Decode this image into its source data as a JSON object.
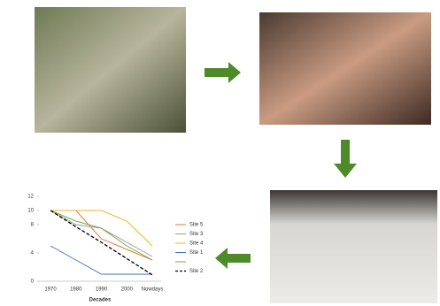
{
  "chart_data": {
    "type": "line",
    "x_label": "Decades",
    "categories": [
      "1970",
      "1980",
      "1990",
      "2000",
      "Nowdays"
    ],
    "ylim": [
      0,
      12
    ],
    "yticks": [
      0,
      4,
      8,
      10,
      12
    ],
    "series": [
      {
        "name": "Site 5",
        "color": "#e07b39",
        "values": [
          10,
          10,
          6,
          4.5,
          3
        ]
      },
      {
        "name": "Site 3",
        "color": "#9a9a9a",
        "values": [
          10,
          8,
          7.5,
          5.5,
          3.5
        ]
      },
      {
        "name": "Site 4",
        "color": "#f0b323",
        "values": [
          10,
          10,
          10,
          8.5,
          5
        ]
      },
      {
        "name": "Site 1",
        "color": "#4472c4",
        "values": [
          5,
          3,
          1,
          1,
          1
        ]
      },
      {
        "color": "#70ad47",
        "values": [
          10,
          8.5,
          7.5,
          5,
          3
        ]
      },
      {
        "name": "Site 2",
        "color": "#000000",
        "dashed": true,
        "values": [
          10,
          7.7,
          5.5,
          3.2,
          0.9
        ]
      }
    ]
  }
}
